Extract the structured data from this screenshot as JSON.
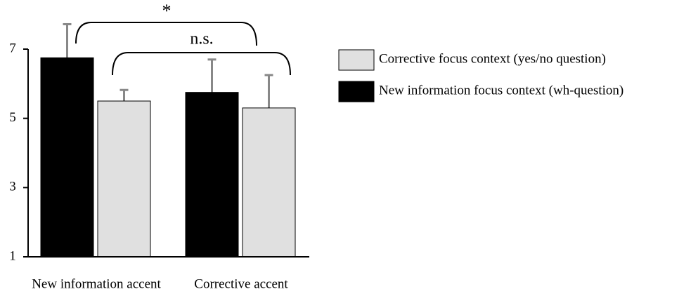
{
  "chart_data": {
    "type": "bar",
    "categories": [
      "New information accent",
      "Corrective accent"
    ],
    "series": [
      {
        "name": "Corrective focus context (yes/no question)",
        "color": "#e0e0e0",
        "values": [
          5.5,
          5.3
        ],
        "errors": [
          0.32,
          0.95
        ]
      },
      {
        "name": "New information focus context (wh-question)",
        "color": "#000000",
        "values": [
          6.75,
          5.75
        ],
        "errors": [
          0.97,
          0.95
        ]
      }
    ],
    "ylim": [
      1,
      7
    ],
    "yticks": [
      1,
      3,
      5,
      7
    ],
    "annotations": [
      "*",
      "n.s."
    ]
  }
}
